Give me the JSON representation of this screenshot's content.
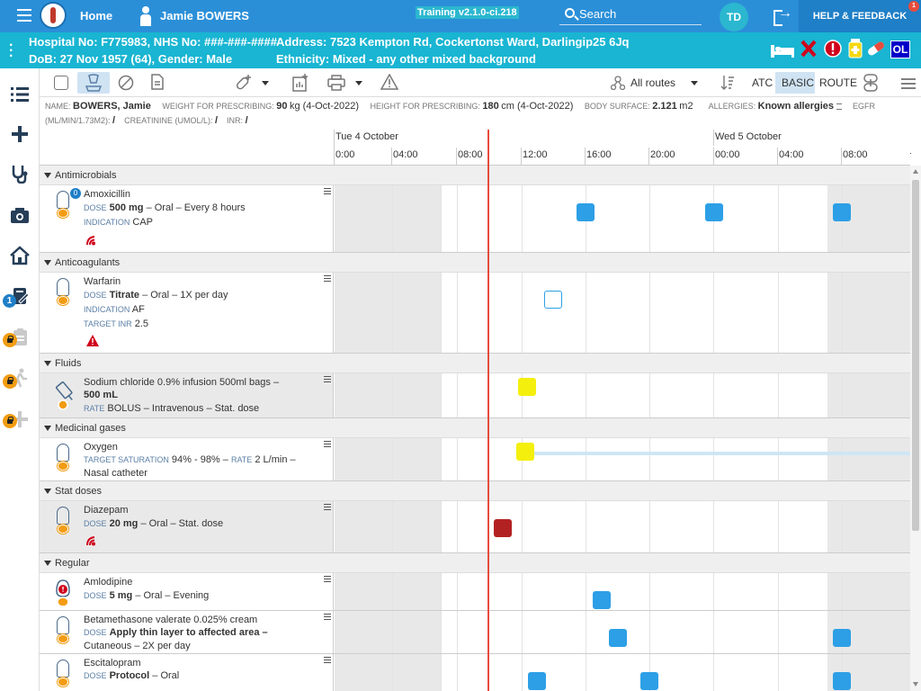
{
  "top": {
    "home": "Home",
    "patient_name": "Jamie BOWERS",
    "build": "Training v2.1.0-ci.218",
    "search": "Search",
    "avatar": "TD",
    "help": "HELP & FEEDBACK",
    "help_badge": "1"
  },
  "patient": {
    "hospital_no": "Hospital No: F775983, NHS No: ###-###-####",
    "dob": "DoB: 27 Nov 1957 (64), Gender: Male",
    "address": "Address: 7523 Kempton Rd, Cockertonst Ward, Darlingip25 6Jq",
    "ethnicity": "Ethnicity: Mixed - any other mixed background",
    "ol_badge": "OL"
  },
  "sidebar": {
    "notes_badge": "1"
  },
  "toolbar": {
    "routes": "All routes",
    "atc": "ATC",
    "basic": "BASIC",
    "route": "ROUTE"
  },
  "vitals": {
    "name_label": "NAME:",
    "name": "BOWERS, Jamie",
    "weight_label": "WEIGHT FOR PRESCRIBING:",
    "weight_val": "90",
    "weight_unit": "kg (4-Oct-2022)",
    "height_label": "HEIGHT FOR PRESCRIBING:",
    "height_val": "180",
    "height_unit": "cm (4-Oct-2022)",
    "bsa_label": "BODY SURFACE:",
    "bsa_val": "2.121",
    "bsa_unit": "m2",
    "allergies_label": "ALLERGIES:",
    "allergies": "Known allergies",
    "egfr_label": "EGFR",
    "egfr_unit": "(ML/MIN/1.73M2):",
    "egfr_val": "/",
    "creat_label": "CREATININE (UMOL/L):",
    "creat_val": "/",
    "inr_label": "INR:",
    "inr_val": "/"
  },
  "timeline": {
    "day1": "Tue 4 October",
    "day2": "Wed 5 October",
    "times": [
      "0:00",
      "04:00",
      "08:00",
      "12:00",
      "16:00",
      "20:00",
      "00:00",
      "04:00",
      "08:00"
    ]
  },
  "groups": {
    "antimicrobials": "Antimicrobials",
    "anticoagulants": "Anticoagulants",
    "fluids": "Fluids",
    "gases": "Medicinal gases",
    "stat": "Stat doses",
    "regular": "Regular"
  },
  "meds": {
    "amox": {
      "name": "Amoxicillin",
      "badge": "0",
      "dose_cap": "DOSE",
      "dose": "500 mg",
      "dose_rest": "– Oral – Every 8 hours",
      "ind_cap": "INDICATION",
      "ind": "CAP"
    },
    "warf": {
      "name": "Warfarin",
      "dose_cap": "DOSE",
      "dose": "Titrate",
      "dose_rest": "– Oral – 1X per day",
      "ind_cap": "INDICATION",
      "ind": "AF",
      "inr_cap": "TARGET INR",
      "inr": "2.5"
    },
    "nacl": {
      "name": "Sodium chloride 0.9% infusion 500ml bags –",
      "dose": "500 mL",
      "rate_cap": "RATE",
      "rate": "BOLUS – Intravenous – Stat. dose"
    },
    "oxy": {
      "name": "Oxygen",
      "sat_cap": "TARGET SATURATION",
      "sat": "94% - 98% –",
      "rate_cap": "RATE",
      "rate": "2 L/min –",
      "line2": "Nasal catheter"
    },
    "diaz": {
      "name": "Diazepam",
      "dose_cap": "DOSE",
      "dose": "20 mg",
      "dose_rest": "– Oral – Stat. dose"
    },
    "amlo": {
      "name": "Amlodipine",
      "dose_cap": "DOSE",
      "dose": "5 mg",
      "dose_rest": "– Oral – Evening"
    },
    "beta": {
      "name": "Betamethasone valerate 0.025% cream",
      "dose_cap": "DOSE",
      "dose": "Apply thin layer to affected area –",
      "line2": "Cutaneous – 2X per day"
    },
    "esci": {
      "name": "Escitalopram",
      "dose_cap": "DOSE",
      "dose": "Protocol",
      "dose_rest": "– Oral"
    }
  },
  "colors": {
    "topbar": "#2b8fd8",
    "patient_bar": "#19b5d2",
    "dose_due": "#2d9fe6",
    "stat_given": "#f4ef0c",
    "omitted": "#b32222",
    "now_line": "#e74c3c"
  }
}
